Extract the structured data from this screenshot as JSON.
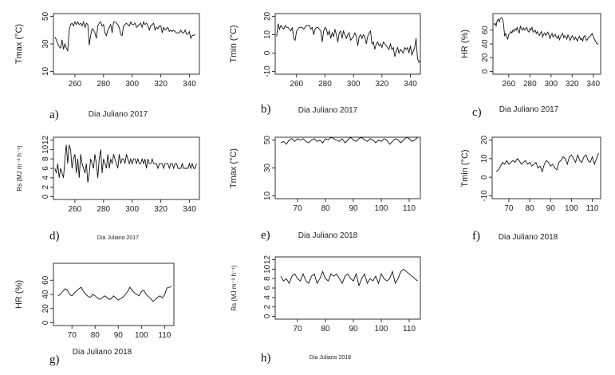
{
  "chart_data": [
    {
      "id": "a",
      "type": "line",
      "panel_label": "a)",
      "xlabel": "Dia Juliano 2017",
      "ylabel": "Tmax (°C)",
      "xlim": [
        245,
        347
      ],
      "xticks": [
        260,
        280,
        300,
        320,
        340
      ],
      "ylim": [
        10,
        50
      ],
      "yticks": [
        10,
        30,
        50
      ],
      "x_start": 246,
      "x_step": 1,
      "values": [
        35,
        33,
        30,
        28,
        27,
        33,
        26,
        30,
        27,
        25,
        40,
        44,
        45,
        43,
        46,
        44,
        46,
        44,
        45,
        43,
        46,
        42,
        45,
        44,
        29,
        36,
        41,
        40,
        38,
        34,
        43,
        45,
        46,
        43,
        44,
        38,
        36,
        40,
        42,
        44,
        38,
        46,
        46,
        45,
        44,
        42,
        37,
        36,
        43,
        44,
        45,
        44,
        43,
        46,
        44,
        44,
        45,
        42,
        43,
        44,
        45,
        42,
        46,
        44,
        45,
        43,
        40,
        43,
        44,
        45,
        40,
        42,
        41,
        43,
        43,
        38,
        42,
        40,
        41,
        42,
        39,
        40,
        39,
        40,
        39,
        38,
        38,
        38,
        40,
        38,
        38,
        40,
        37,
        37,
        39,
        34,
        36,
        36,
        37
      ]
    },
    {
      "id": "b",
      "type": "line",
      "panel_label": "b)",
      "xlabel": "Dia Juliano 2017",
      "ylabel": "Tmin (°C)",
      "xlim": [
        245,
        347
      ],
      "xticks": [
        260,
        280,
        300,
        320,
        340
      ],
      "ylim": [
        -10,
        20
      ],
      "yticks": [
        -10,
        0,
        10,
        20
      ],
      "x_start": 246,
      "x_step": 1,
      "values": [
        9,
        16,
        13,
        15,
        14,
        13,
        15,
        14,
        14,
        13,
        12,
        14,
        8,
        7,
        12,
        13,
        14,
        14,
        14,
        13,
        14,
        15,
        15,
        15,
        13,
        14,
        10,
        13,
        14,
        14,
        13,
        12,
        6,
        12,
        14,
        13,
        10,
        12,
        8,
        11,
        9,
        13,
        10,
        6,
        11,
        12,
        8,
        12,
        10,
        8,
        10,
        11,
        7,
        8,
        9,
        11,
        9,
        4,
        9,
        10,
        8,
        10,
        9,
        5,
        9,
        11,
        12,
        5,
        6,
        2,
        5,
        6,
        4,
        5,
        3,
        6,
        5,
        4,
        3,
        2,
        5,
        2,
        3,
        -2,
        1,
        3,
        0,
        2,
        1,
        0,
        3,
        2,
        3,
        0,
        4,
        -1,
        1,
        3,
        8,
        -3,
        -5,
        -4
      ]
    },
    {
      "id": "c",
      "type": "line",
      "panel_label": "c)",
      "xlabel": "Dia Juliano 2017",
      "ylabel": "HR (%)",
      "xlim": [
        245,
        347
      ],
      "xticks": [
        260,
        280,
        300,
        320,
        340
      ],
      "ylim": [
        0,
        80
      ],
      "yticks": [
        0,
        20,
        40,
        60
      ],
      "x_start": 246,
      "x_step": 1,
      "values": [
        68,
        70,
        66,
        74,
        76,
        72,
        77,
        78,
        76,
        70,
        52,
        55,
        50,
        47,
        54,
        55,
        58,
        56,
        60,
        58,
        62,
        60,
        64,
        58,
        56,
        66,
        62,
        60,
        63,
        60,
        62,
        64,
        59,
        57,
        62,
        60,
        64,
        57,
        58,
        60,
        55,
        58,
        54,
        52,
        56,
        58,
        50,
        54,
        56,
        52,
        55,
        57,
        53,
        48,
        52,
        55,
        50,
        52,
        54,
        50,
        48,
        52,
        46,
        50,
        53,
        55,
        49,
        52,
        50,
        47,
        53,
        50,
        45,
        48,
        52,
        49,
        46,
        50,
        47,
        44,
        49,
        51,
        46,
        48,
        44,
        50,
        52,
        47,
        45,
        48,
        50,
        51,
        53,
        55,
        51,
        47,
        44,
        41,
        40,
        40
      ]
    },
    {
      "id": "d",
      "type": "line",
      "panel_label": "d)",
      "xlabel": "Dia Juliano 2017",
      "ylabel": "Rs (MJ m⁻² h⁻¹)",
      "xlim": [
        245,
        347
      ],
      "xticks": [
        260,
        280,
        300,
        320,
        340
      ],
      "ylim": [
        0,
        12
      ],
      "yticks": [
        0,
        2,
        4,
        6,
        8,
        10,
        12
      ],
      "x_start": 246,
      "x_step": 1,
      "values": [
        6,
        5,
        7,
        4,
        6,
        5,
        4,
        8,
        11,
        7,
        11,
        10,
        6,
        8,
        9,
        5,
        8,
        4,
        9,
        7,
        6,
        5,
        7,
        3,
        5,
        8,
        7,
        6,
        9,
        7,
        4,
        8,
        10,
        5,
        8,
        7,
        6,
        9,
        6,
        8,
        7,
        9,
        8,
        7,
        6,
        9,
        7,
        8,
        8,
        7,
        9,
        8,
        7,
        8,
        7,
        8,
        8,
        7,
        8,
        7,
        7,
        8,
        7,
        8,
        6,
        8,
        7,
        7,
        8,
        7,
        7,
        7,
        6,
        7,
        7,
        7,
        6,
        7,
        7,
        7,
        6,
        7,
        7,
        6,
        7,
        7,
        6,
        6,
        6,
        7,
        6,
        6,
        6,
        6,
        7,
        6,
        7,
        6,
        6,
        7
      ]
    },
    {
      "id": "e",
      "type": "line",
      "panel_label": "e)",
      "xlabel": "Dia Juliano 2018",
      "ylabel": "Tmax (°C)",
      "xlim": [
        62,
        114
      ],
      "xticks": [
        70,
        80,
        90,
        100,
        110
      ],
      "ylim": [
        10,
        50
      ],
      "yticks": [
        10,
        30,
        50
      ],
      "x_start": 64,
      "x_step": 1,
      "values": [
        48,
        49,
        47,
        50,
        51,
        49,
        51,
        50,
        51,
        49,
        48,
        50,
        51,
        49,
        50,
        48,
        51,
        50,
        52,
        51,
        50,
        49,
        51,
        48,
        50,
        52,
        50,
        49,
        51,
        52,
        50,
        49,
        51,
        50,
        48,
        50,
        49,
        51,
        50,
        47,
        49,
        51,
        50,
        48,
        50,
        52,
        51,
        49,
        50,
        52
      ]
    },
    {
      "id": "f",
      "type": "line",
      "panel_label": "f)",
      "xlabel": "Dia Juliano 2018",
      "ylabel": "Tmin (°C)",
      "xlim": [
        62,
        114
      ],
      "xticks": [
        70,
        80,
        90,
        100,
        110
      ],
      "ylim": [
        -10,
        20
      ],
      "yticks": [
        -10,
        0,
        10,
        20
      ],
      "x_start": 64,
      "x_step": 1,
      "values": [
        3,
        4,
        6,
        8,
        7,
        9,
        7,
        8,
        9,
        8,
        10,
        9,
        7,
        8,
        9,
        7,
        8,
        6,
        7,
        8,
        5,
        6,
        3,
        7,
        9,
        8,
        6,
        7,
        5,
        4,
        8,
        9,
        11,
        10,
        7,
        11,
        12,
        10,
        8,
        12,
        9,
        8,
        11,
        12,
        9,
        8,
        11,
        7,
        10,
        13
      ]
    },
    {
      "id": "g",
      "type": "line",
      "panel_label": "g)",
      "xlabel": "Dia Juliano 2018",
      "ylabel": "HR (%)",
      "xlim": [
        62,
        114
      ],
      "xticks": [
        70,
        80,
        90,
        100,
        110
      ],
      "ylim": [
        0,
        80
      ],
      "yticks": [
        0,
        20,
        40,
        60
      ],
      "x_start": 64,
      "x_step": 1,
      "values": [
        38,
        40,
        44,
        48,
        46,
        40,
        38,
        42,
        45,
        48,
        50,
        44,
        40,
        37,
        36,
        40,
        38,
        35,
        33,
        35,
        38,
        36,
        33,
        34,
        38,
        35,
        32,
        34,
        36,
        40,
        44,
        50,
        46,
        42,
        40,
        38,
        44,
        46,
        40,
        37,
        34,
        30,
        33,
        36,
        38,
        35,
        40,
        49,
        50,
        51
      ]
    },
    {
      "id": "h",
      "type": "line",
      "panel_label": "h)",
      "xlabel": "Dia Juliano 2018",
      "ylabel": "Rs (MJ m⁻² h⁻¹)",
      "xlim": [
        62,
        114
      ],
      "xticks": [
        70,
        80,
        90,
        100,
        110
      ],
      "ylim": [
        0,
        12
      ],
      "yticks": [
        0,
        2,
        4,
        6,
        8,
        10,
        12
      ],
      "x_start": 64,
      "x_step": 1,
      "values": [
        8.5,
        7.5,
        8,
        7,
        8.5,
        9,
        8,
        7.5,
        9,
        7.5,
        7,
        8.5,
        9,
        7,
        8,
        9.5,
        8,
        7.5,
        9,
        8.5,
        9,
        8,
        7,
        8.5,
        9,
        8,
        7.5,
        9,
        6.5,
        8,
        9,
        7,
        8,
        7.5,
        8.5,
        7,
        9,
        8,
        7.5,
        8,
        9.5,
        7,
        8,
        9.5,
        10,
        9.5,
        9,
        8.5,
        8,
        7.5
      ]
    }
  ]
}
